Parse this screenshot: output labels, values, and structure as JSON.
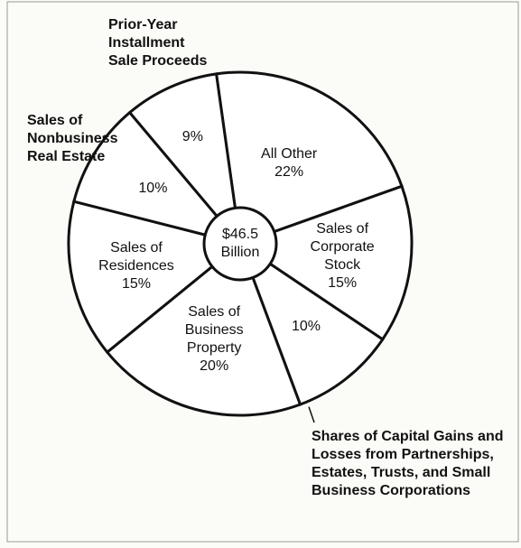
{
  "chart_data": {
    "type": "pie",
    "categories": [
      "All Other",
      "Sales of Corporate Stock",
      "Shares of Capital Gains and Losses from Partnerships, Estates, Trusts, and Small Business Corporations",
      "Sales of Business Property",
      "Sales of Residences",
      "Sales of Nonbusiness Real Estate",
      "Prior-Year Installment Sale Proceeds"
    ],
    "values": [
      22,
      15,
      10,
      20,
      15,
      10,
      9
    ],
    "value_labels": [
      "22%",
      "15%",
      "10%",
      "20%",
      "15%",
      "10%",
      "9%"
    ],
    "center_label": [
      "$46.5",
      "Billion"
    ],
    "color": "#ffffff"
  }
}
